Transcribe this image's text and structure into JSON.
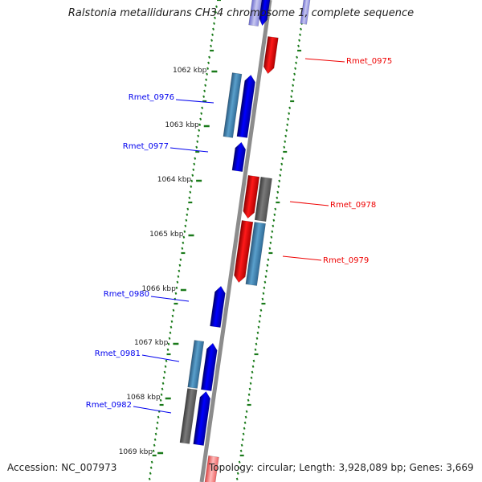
{
  "title": "Ralstonia metallidurans CH34 chromosome 1, complete sequence",
  "footer": {
    "accession": "Accession: NC_007973",
    "topology": "Topology: circular; Length: 3,928,089 bp; Genes: 3,669"
  },
  "ticks": [
    {
      "label": "1062 kbp"
    },
    {
      "label": "1063 kbp"
    },
    {
      "label": "1064 kbp"
    },
    {
      "label": "1065 kbp"
    },
    {
      "label": "1066 kbp"
    },
    {
      "label": "1067 kbp"
    },
    {
      "label": "1068 kbp"
    },
    {
      "label": "1069 kbp"
    }
  ],
  "genes": [
    {
      "name": "Rmet_0975",
      "strand": "reverse",
      "color": "#cc0000"
    },
    {
      "name": "Rmet_0976",
      "strand": "forward",
      "color": "#0000bb"
    },
    {
      "name": "Rmet_0977",
      "strand": "forward",
      "color": "#0000bb"
    },
    {
      "name": "Rmet_0978",
      "strand": "reverse",
      "color": "#cc0000"
    },
    {
      "name": "Rmet_0979",
      "strand": "reverse",
      "color": "#cc0000"
    },
    {
      "name": "Rmet_0980",
      "strand": "forward",
      "color": "#0000bb"
    },
    {
      "name": "Rmet_0981",
      "strand": "forward",
      "color": "#0000bb"
    },
    {
      "name": "Rmet_0982",
      "strand": "forward",
      "color": "#0000bb"
    }
  ],
  "colors": {
    "forward_cds": "#0000ee",
    "reverse_cds": "#ee0000",
    "gene_feature": "#4682b4",
    "other_feature": "#666666",
    "gc_dots": "#1a7a1a",
    "backbone": "#888888"
  }
}
